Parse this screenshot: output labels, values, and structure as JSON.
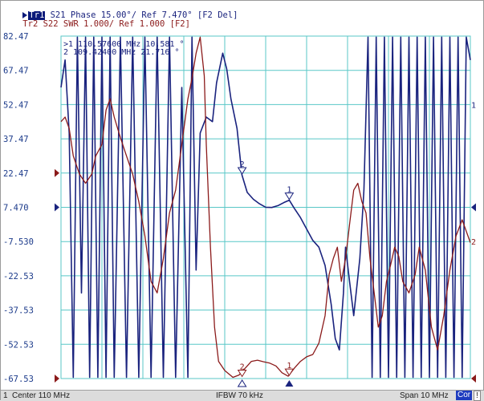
{
  "trace1": {
    "badge": "Tr1",
    "text": " S21 Phase 15.00°/ Ref 7.470° [F2 Del]",
    "color": "#1a237e"
  },
  "trace2": {
    "text": "Tr2 S22 SWR 1.000/ Ref 1.000 [F2]",
    "color": "#8b1a1a"
  },
  "marker_readout": [
    {
      "id": ">1",
      "freq": "110.57600 MHz",
      "value": "10.581 °"
    },
    {
      "id": "2",
      "freq": "109.42400 MHz",
      "value": "21.716 °"
    }
  ],
  "y_tick_labels": [
    "82.47",
    "67.47",
    "52.47",
    "37.47",
    "22.47",
    "7.470",
    "-7.530",
    "-22.53",
    "-37.53",
    "-52.53",
    "-67.53"
  ],
  "right_trace_labels": [
    "1",
    "2"
  ],
  "marker_labels": [
    "1",
    "2"
  ],
  "status_bar": {
    "channel": "1",
    "center": "Center 110 MHz",
    "ifbw": "IFBW 70 kHz",
    "span": "Span 10 MHz",
    "cor": "Cor",
    "warn": "!"
  },
  "chart_data": {
    "type": "line",
    "x_divisions": 10,
    "y_divisions": 10,
    "grid": true,
    "grid_color": "#59c7c7",
    "x_range_mhz": [
      105,
      115
    ],
    "series": [
      {
        "color": "#1a237e",
        "unit": "deg",
        "points": [
          [
            105.0,
            60
          ],
          [
            105.1,
            72
          ],
          [
            105.2,
            40
          ],
          [
            105.3,
            -67
          ],
          [
            105.4,
            82
          ],
          [
            105.5,
            -30
          ],
          [
            105.6,
            82
          ],
          [
            105.7,
            -67
          ],
          [
            105.8,
            82
          ],
          [
            105.9,
            -67
          ],
          [
            106.0,
            82
          ],
          [
            106.1,
            -67
          ],
          [
            106.2,
            82
          ],
          [
            106.3,
            -67
          ],
          [
            106.45,
            82
          ],
          [
            106.6,
            -67
          ],
          [
            106.75,
            82
          ],
          [
            106.9,
            -67
          ],
          [
            107.05,
            82
          ],
          [
            107.2,
            -67
          ],
          [
            107.35,
            82
          ],
          [
            107.5,
            -67
          ],
          [
            107.65,
            82
          ],
          [
            107.8,
            -67
          ],
          [
            107.95,
            60
          ],
          [
            108.1,
            -67
          ],
          [
            108.2,
            82
          ],
          [
            108.3,
            -20
          ],
          [
            108.4,
            40
          ],
          [
            108.55,
            47
          ],
          [
            108.7,
            45
          ],
          [
            108.8,
            62
          ],
          [
            108.95,
            75
          ],
          [
            109.05,
            68
          ],
          [
            109.15,
            55
          ],
          [
            109.3,
            42
          ],
          [
            109.42,
            21.7
          ],
          [
            109.55,
            14
          ],
          [
            109.7,
            11
          ],
          [
            109.85,
            9
          ],
          [
            110.0,
            7.5
          ],
          [
            110.15,
            7.4
          ],
          [
            110.3,
            8.2
          ],
          [
            110.45,
            9.6
          ],
          [
            110.576,
            10.6
          ],
          [
            110.7,
            7
          ],
          [
            110.85,
            3
          ],
          [
            111.0,
            -2
          ],
          [
            111.15,
            -7
          ],
          [
            111.3,
            -10
          ],
          [
            111.45,
            -18
          ],
          [
            111.6,
            -35
          ],
          [
            111.7,
            -50
          ],
          [
            111.8,
            -55
          ],
          [
            111.9,
            -30
          ],
          [
            111.95,
            -10
          ],
          [
            112.05,
            -25
          ],
          [
            112.15,
            -40
          ],
          [
            112.3,
            -15
          ],
          [
            112.4,
            15
          ],
          [
            112.5,
            82
          ],
          [
            112.6,
            -67
          ],
          [
            112.7,
            82
          ],
          [
            112.8,
            -67
          ],
          [
            112.9,
            82
          ],
          [
            113.0,
            -67
          ],
          [
            113.1,
            82
          ],
          [
            113.2,
            -67
          ],
          [
            113.3,
            82
          ],
          [
            113.4,
            -67
          ],
          [
            113.5,
            82
          ],
          [
            113.6,
            -67
          ],
          [
            113.7,
            82
          ],
          [
            113.8,
            -67
          ],
          [
            113.9,
            82
          ],
          [
            114.0,
            -67
          ],
          [
            114.1,
            82
          ],
          [
            114.2,
            -67
          ],
          [
            114.3,
            82
          ],
          [
            114.4,
            -67
          ],
          [
            114.5,
            82
          ],
          [
            114.6,
            -67
          ],
          [
            114.7,
            82
          ],
          [
            114.8,
            -67
          ],
          [
            114.9,
            82
          ],
          [
            115.0,
            72
          ]
        ]
      },
      {
        "color": "#8b1a1a",
        "unit": "SWR",
        "points": [
          [
            105.0,
            45
          ],
          [
            105.1,
            47
          ],
          [
            105.2,
            42
          ],
          [
            105.3,
            30
          ],
          [
            105.45,
            22
          ],
          [
            105.6,
            18
          ],
          [
            105.75,
            22
          ],
          [
            105.85,
            30
          ],
          [
            106.0,
            35
          ],
          [
            106.1,
            50
          ],
          [
            106.2,
            55
          ],
          [
            106.3,
            47
          ],
          [
            106.45,
            38
          ],
          [
            106.6,
            30
          ],
          [
            106.75,
            22
          ],
          [
            106.9,
            10
          ],
          [
            107.05,
            -5
          ],
          [
            107.2,
            -25
          ],
          [
            107.35,
            -30
          ],
          [
            107.5,
            -15
          ],
          [
            107.65,
            5
          ],
          [
            107.8,
            15
          ],
          [
            107.95,
            35
          ],
          [
            108.1,
            55
          ],
          [
            108.2,
            64
          ],
          [
            108.3,
            75
          ],
          [
            108.4,
            82
          ],
          [
            108.5,
            65
          ],
          [
            108.55,
            35
          ],
          [
            108.65,
            -10
          ],
          [
            108.75,
            -45
          ],
          [
            108.85,
            -60
          ],
          [
            109.0,
            -64
          ],
          [
            109.2,
            -67
          ],
          [
            109.35,
            -66
          ],
          [
            109.5,
            -63
          ],
          [
            109.65,
            -60
          ],
          [
            109.8,
            -59.5
          ],
          [
            109.95,
            -60.2
          ],
          [
            110.1,
            -60.8
          ],
          [
            110.25,
            -62
          ],
          [
            110.4,
            -65
          ],
          [
            110.55,
            -66.5
          ],
          [
            110.7,
            -63
          ],
          [
            110.85,
            -60
          ],
          [
            111.0,
            -58
          ],
          [
            111.15,
            -57
          ],
          [
            111.3,
            -52
          ],
          [
            111.45,
            -40
          ],
          [
            111.55,
            -22
          ],
          [
            111.65,
            -15
          ],
          [
            111.75,
            -10
          ],
          [
            111.85,
            -25
          ],
          [
            111.95,
            -15
          ],
          [
            112.05,
            0
          ],
          [
            112.15,
            15
          ],
          [
            112.25,
            18
          ],
          [
            112.35,
            10
          ],
          [
            112.45,
            5
          ],
          [
            112.55,
            -15
          ],
          [
            112.65,
            -30
          ],
          [
            112.75,
            -45
          ],
          [
            112.85,
            -40
          ],
          [
            112.95,
            -25
          ],
          [
            113.05,
            -18
          ],
          [
            113.15,
            -10
          ],
          [
            113.25,
            -14
          ],
          [
            113.35,
            -25
          ],
          [
            113.5,
            -30
          ],
          [
            113.65,
            -22
          ],
          [
            113.75,
            -10
          ],
          [
            113.9,
            -20
          ],
          [
            114.05,
            -45
          ],
          [
            114.2,
            -55
          ],
          [
            114.35,
            -40
          ],
          [
            114.5,
            -20
          ],
          [
            114.65,
            -5
          ],
          [
            114.8,
            2
          ],
          [
            114.9,
            -3
          ],
          [
            115.0,
            -8
          ]
        ]
      }
    ],
    "markers": [
      {
        "id": "1",
        "series": 0,
        "x": 110.576,
        "y": 10.581
      },
      {
        "id": "2",
        "series": 0,
        "x": 109.424,
        "y": 21.716
      },
      {
        "id": "1",
        "series": 1,
        "x": 110.576,
        "y": -66.5
      },
      {
        "id": "2",
        "series": 1,
        "x": 109.424,
        "y": -67.0
      }
    ]
  }
}
